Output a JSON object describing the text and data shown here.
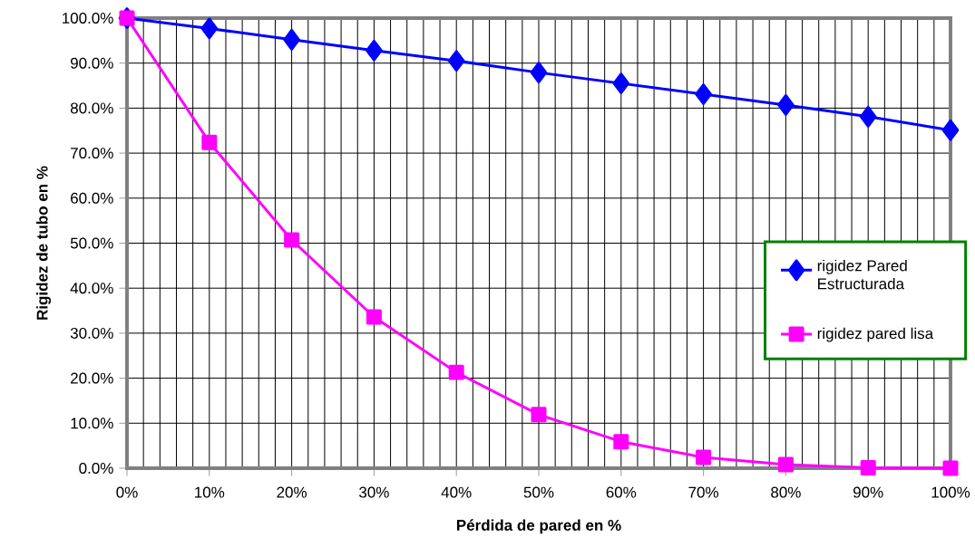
{
  "chart_data": {
    "type": "line",
    "xlabel": "Pérdida de pared en %",
    "ylabel": "Rigidez de tubo en %",
    "x": [
      0,
      10,
      20,
      30,
      40,
      50,
      60,
      70,
      80,
      90,
      100
    ],
    "series": [
      {
        "name": "rigidez Pared Estructurada",
        "color": "#0000ff",
        "marker": "diamond",
        "values": [
          100,
          97.7,
          95.2,
          92.8,
          90.5,
          87.9,
          85.5,
          83.1,
          80.7,
          78.1,
          75.1
        ]
      },
      {
        "name": "rigidez pared lisa",
        "color": "#ff00ff",
        "marker": "square",
        "values": [
          100,
          72.4,
          50.7,
          33.6,
          21.3,
          11.9,
          5.9,
          2.4,
          0.8,
          0.1,
          0
        ]
      }
    ],
    "xlim": [
      0,
      100
    ],
    "ylim": [
      0,
      100
    ],
    "xticks": [
      {
        "value": 0,
        "label": "0%"
      },
      {
        "value": 10,
        "label": "10%"
      },
      {
        "value": 20,
        "label": "20%"
      },
      {
        "value": 30,
        "label": "30%"
      },
      {
        "value": 40,
        "label": "40%"
      },
      {
        "value": 50,
        "label": "50%"
      },
      {
        "value": 60,
        "label": "60%"
      },
      {
        "value": 70,
        "label": "70%"
      },
      {
        "value": 80,
        "label": "80%"
      },
      {
        "value": 90,
        "label": "90%"
      },
      {
        "value": 100,
        "label": "100%"
      }
    ],
    "yticks": [
      {
        "value": 0,
        "label": "0.0%"
      },
      {
        "value": 10,
        "label": "10.0%"
      },
      {
        "value": 20,
        "label": "20.0%"
      },
      {
        "value": 30,
        "label": "30.0%"
      },
      {
        "value": 40,
        "label": "40.0%"
      },
      {
        "value": 50,
        "label": "50.0%"
      },
      {
        "value": 60,
        "label": "60.0%"
      },
      {
        "value": 70,
        "label": "70.0%"
      },
      {
        "value": 80,
        "label": "80.0%"
      },
      {
        "value": 90,
        "label": "90.0%"
      },
      {
        "value": 100,
        "label": "100.0%"
      }
    ],
    "grid": true,
    "legend": "right",
    "line_style": "solid"
  }
}
